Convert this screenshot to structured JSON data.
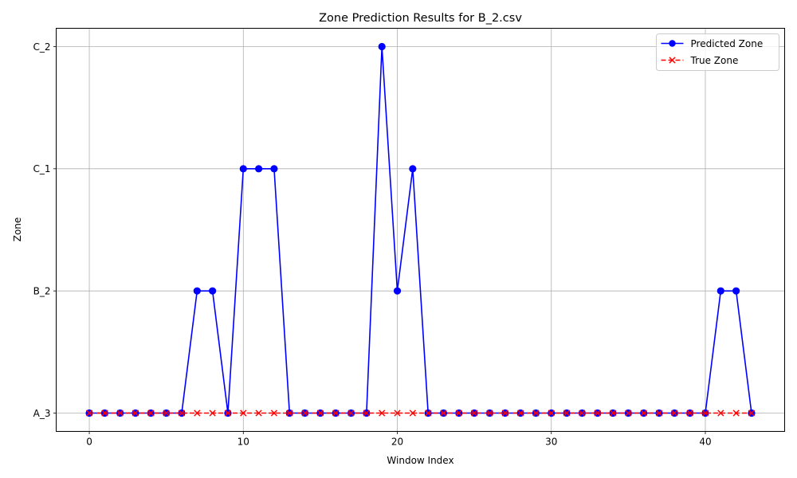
{
  "chart_data": {
    "type": "line",
    "title": "Zone Prediction Results for B_2.csv",
    "xlabel": "Window Index",
    "ylabel": "Zone",
    "x": [
      0,
      1,
      2,
      3,
      4,
      5,
      6,
      7,
      8,
      9,
      10,
      11,
      12,
      13,
      14,
      15,
      16,
      17,
      18,
      19,
      20,
      21,
      22,
      23,
      24,
      25,
      26,
      27,
      28,
      29,
      30,
      31,
      32,
      33,
      34,
      35,
      36,
      37,
      38,
      39,
      40,
      41,
      42,
      43
    ],
    "y_categories": [
      "A_3",
      "B_2",
      "C_1",
      "C_2"
    ],
    "xlim": [
      -2.15,
      45.15
    ],
    "ylim": [
      -0.15,
      3.15
    ],
    "x_ticks": [
      0,
      10,
      20,
      30,
      40
    ],
    "x_tick_labels": [
      "0",
      "10",
      "20",
      "30",
      "40"
    ],
    "grid": true,
    "legend_position": "top-right",
    "series": [
      {
        "name": "Predicted Zone",
        "color": "#0000ff",
        "line_style": "solid",
        "marker": "circle",
        "values": [
          "A_3",
          "A_3",
          "A_3",
          "A_3",
          "A_3",
          "A_3",
          "A_3",
          "B_2",
          "B_2",
          "A_3",
          "C_1",
          "C_1",
          "C_1",
          "A_3",
          "A_3",
          "A_3",
          "A_3",
          "A_3",
          "A_3",
          "C_2",
          "B_2",
          "C_1",
          "A_3",
          "A_3",
          "A_3",
          "A_3",
          "A_3",
          "A_3",
          "A_3",
          "A_3",
          "A_3",
          "A_3",
          "A_3",
          "A_3",
          "A_3",
          "A_3",
          "A_3",
          "A_3",
          "A_3",
          "A_3",
          "A_3",
          "B_2",
          "B_2",
          "A_3"
        ]
      },
      {
        "name": "True Zone",
        "color": "#ff0000",
        "line_style": "dashed",
        "marker": "x",
        "values": [
          "A_3",
          "A_3",
          "A_3",
          "A_3",
          "A_3",
          "A_3",
          "A_3",
          "A_3",
          "A_3",
          "A_3",
          "A_3",
          "A_3",
          "A_3",
          "A_3",
          "A_3",
          "A_3",
          "A_3",
          "A_3",
          "A_3",
          "A_3",
          "A_3",
          "A_3",
          "A_3",
          "A_3",
          "A_3",
          "A_3",
          "A_3",
          "A_3",
          "A_3",
          "A_3",
          "A_3",
          "A_3",
          "A_3",
          "A_3",
          "A_3",
          "A_3",
          "A_3",
          "A_3",
          "A_3",
          "A_3",
          "A_3",
          "A_3",
          "A_3",
          "A_3"
        ]
      }
    ]
  }
}
